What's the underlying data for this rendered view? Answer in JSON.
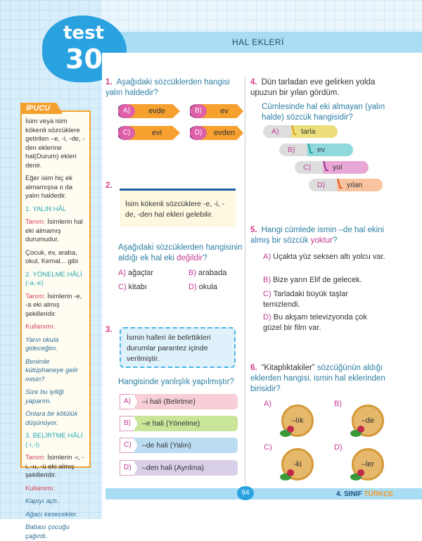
{
  "header": {
    "badge_top": "test",
    "badge_number": "30",
    "title": "HAL EKLERİ"
  },
  "tip": {
    "label": "İPUCU",
    "p1": "İsim veya isim kökenli sözcüklere getirilen –e, -i, -de, -den eklerine hal(Durum) ekleri denir.",
    "p2": "Eğer isim hiç ek almamışsa o da yalın haldedir.",
    "s1_title": "1. YALIN HÂL",
    "s1_def_label": "Tanım:",
    "s1_def": "İsimlerin hal eki almamış durumudur.",
    "s1_ex": "Çocuk, ev, araba, okul, Kemal... gibi",
    "s2_title": "2. YÖNELME HÂLİ (-a,-e)",
    "s2_def_label": "Tanım:",
    "s2_def": "İsimlerin -e, -a eki almış şekilleridir.",
    "usage": "Kullanımı:",
    "s2_ex": [
      "Yarın okula gideceğim.",
      "Benimle kütüphaneye gelir misin?",
      "Size bu iyiliği yaparım.",
      "Onlara bir kötülük düşünüyor."
    ],
    "s3_title": "3. BELİRTME HÂLİ (-ı,-i)",
    "s3_def_label": "Tanım:",
    "s3_def": "İsimlerin -ı, -i, -u, -ü eki almış şekilleridir.",
    "s3_ex": [
      "Kapıyı açtı.",
      "Ağacı kesecekler.",
      "Babası çocuğu çağırdı."
    ]
  },
  "q1": {
    "num": "1.",
    "text": "Aşağıdaki sözcüklerden hangisi yalın haldedir?",
    "options": [
      {
        "l": "A)",
        "v": "evde"
      },
      {
        "l": "B)",
        "v": "ev"
      },
      {
        "l": "C)",
        "v": "evi"
      },
      {
        "l": "D)",
        "v": "evden"
      }
    ]
  },
  "q2": {
    "num": "2.",
    "note": "İsim kökenli sözcüklere -e, -i, -de, -den hal ekleri gelebilir.",
    "text": "Aşağıdaki sözcüklerden hangisinin aldığı ek hal eki",
    "emph": "değildir",
    "q": "?",
    "options": [
      {
        "l": "A)",
        "v": "ağaçlar"
      },
      {
        "l": "B)",
        "v": "arabada"
      },
      {
        "l": "C)",
        "v": "kitabı"
      },
      {
        "l": "D)",
        "v": "okula"
      }
    ]
  },
  "q3": {
    "num": "3.",
    "note": "İsmin halleri ile belirttikleri durumlar parantez içinde verilmiştir.",
    "text": "Hangisinde yanlışlık yapılmıştır?",
    "options": [
      {
        "l": "A)",
        "v": "–i hali (Belirtme)"
      },
      {
        "l": "B)",
        "v": "–e hali (Yönelme)"
      },
      {
        "l": "C)",
        "v": "–de hali (Yalın)"
      },
      {
        "l": "D)",
        "v": "–den hali (Ayrılma)"
      }
    ]
  },
  "q4": {
    "num": "4.",
    "text": "Dün tarladan eve gelirken yolda upuzun bir yılan gördüm.",
    "ask": "Cümlesinde hal eki almayan (yalın halde) sözcük hangisidir?",
    "options": [
      {
        "l": "A)",
        "v": "tarla"
      },
      {
        "l": "B)",
        "v": "ev"
      },
      {
        "l": "C)",
        "v": "yol"
      },
      {
        "l": "D)",
        "v": "yılan"
      }
    ]
  },
  "q5": {
    "num": "5.",
    "text": "Hangi cümlede ismin –de hal ekini almış bir sözcük",
    "emph": "yoktur",
    "q": "?",
    "options": [
      {
        "l": "A)",
        "v": "Uçakta yüz seksen altı yolcu var."
      },
      {
        "l": "B)",
        "v": "Bize yarın Elif de gelecek."
      },
      {
        "l": "C)",
        "v": "Tarladaki büyük taşlar temizlendi."
      },
      {
        "l": "D)",
        "v": "Bu akşam televizyonda çok güzel bir film var."
      }
    ]
  },
  "q6": {
    "num": "6.",
    "quote": "“Kitaplıktakiler”",
    "text": "sözcüğünün aldığı eklerden hangisi, ismin hal eklerinden birisidir?",
    "options": [
      {
        "l": "A)",
        "v": "–lık"
      },
      {
        "l": "B)",
        "v": "–de"
      },
      {
        "l": "C)",
        "v": "-ki"
      },
      {
        "l": "D)",
        "v": "–ler"
      }
    ]
  },
  "footer": {
    "page": "94",
    "brand_a": "4. SINIF",
    "brand_b": "TÜRKÇE"
  },
  "colors": {
    "accent_blue": "#2aa2e0",
    "band": "#a9ddf4",
    "orange": "#f4a02c",
    "pink": "#c23b94"
  }
}
